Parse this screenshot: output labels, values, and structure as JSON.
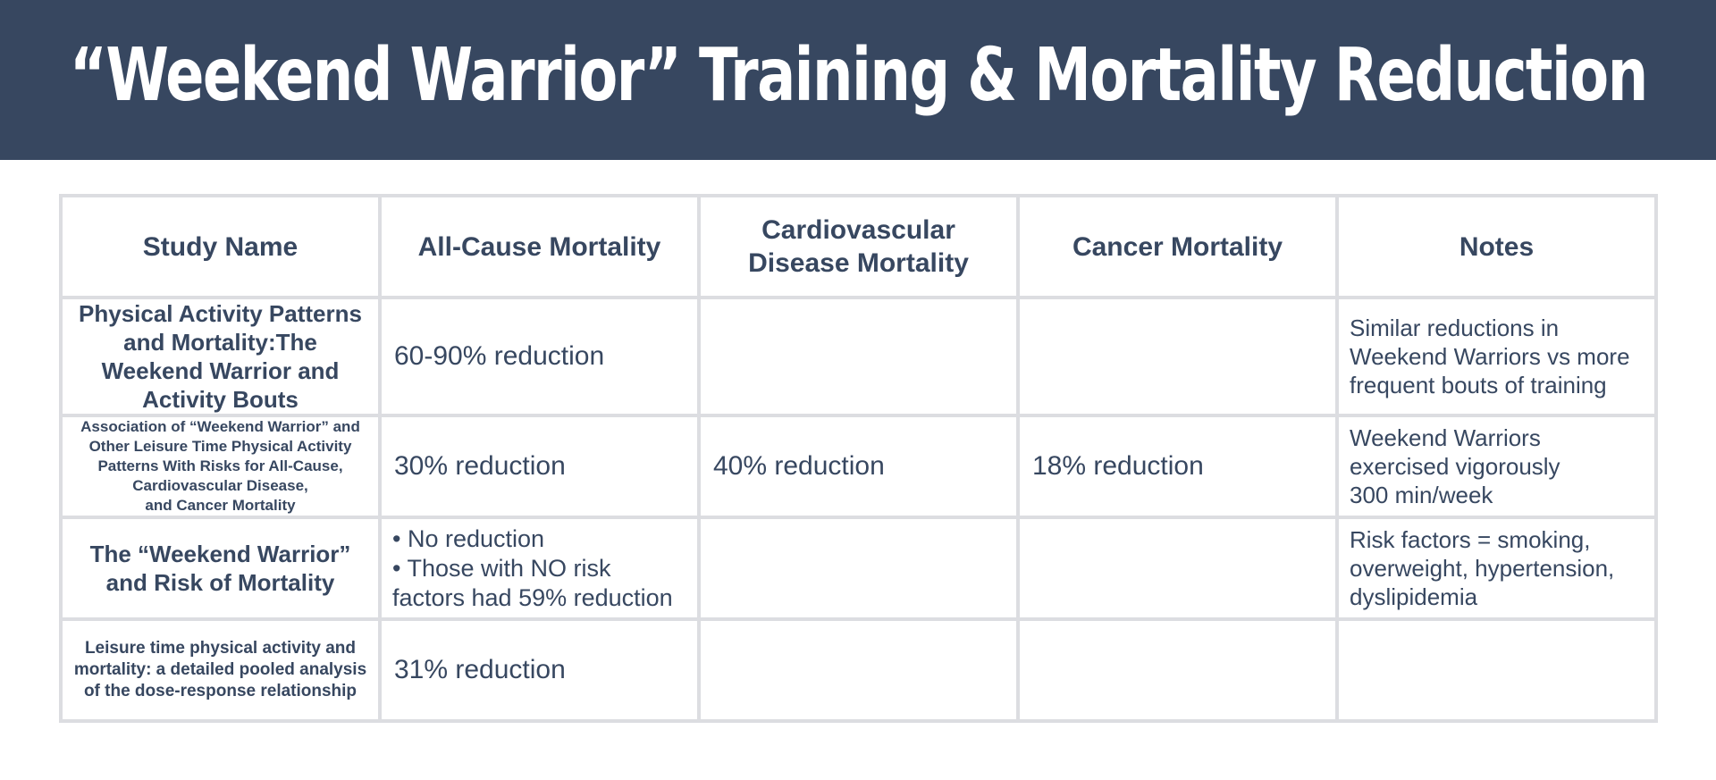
{
  "title": "“Weekend Warrior” Training & Mortality Reduction",
  "table": {
    "headers": [
      "Study Name",
      "All-Cause Mortality",
      "Cardiovascular Disease Mortality",
      "Cancer Mortality",
      "Notes"
    ],
    "rows": [
      {
        "study": "Physical Activity Patterns and Mortality:The Weekend Warrior and Activity Bouts",
        "all_cause": "60-90% reduction",
        "cvd": "",
        "cancer": "",
        "notes": "Similar reductions in Weekend Warriors vs more frequent bouts of training"
      },
      {
        "study_lines": [
          "Association of “Weekend Warrior” and",
          "Other Leisure Time Physical Activity",
          "Patterns With Risks for All-Cause,",
          "Cardiovascular Disease,",
          "and Cancer Mortality"
        ],
        "all_cause": "30% reduction",
        "cvd": "40% reduction",
        "cancer": "18% reduction",
        "notes_lines": [
          "Weekend Warriors",
          "exercised vigorously",
          "300 min/week"
        ]
      },
      {
        "study": "The “Weekend Warrior” and Risk of Mortality",
        "all_cause_lines": [
          "• No reduction",
          "• Those with NO risk factors had 59% reduction"
        ],
        "cvd": "",
        "cancer": "",
        "notes": "Risk factors = smoking, overweight, hypertension, dyslipidemia"
      },
      {
        "study": "Leisure time physical activity and mortality: a detailed pooled analysis of the dose-response relationship",
        "all_cause": "31% reduction",
        "cvd": "",
        "cancer": "",
        "notes": ""
      }
    ]
  },
  "colors": {
    "banner": "#374760",
    "text": "#374760",
    "grid": "#dcdde1"
  }
}
